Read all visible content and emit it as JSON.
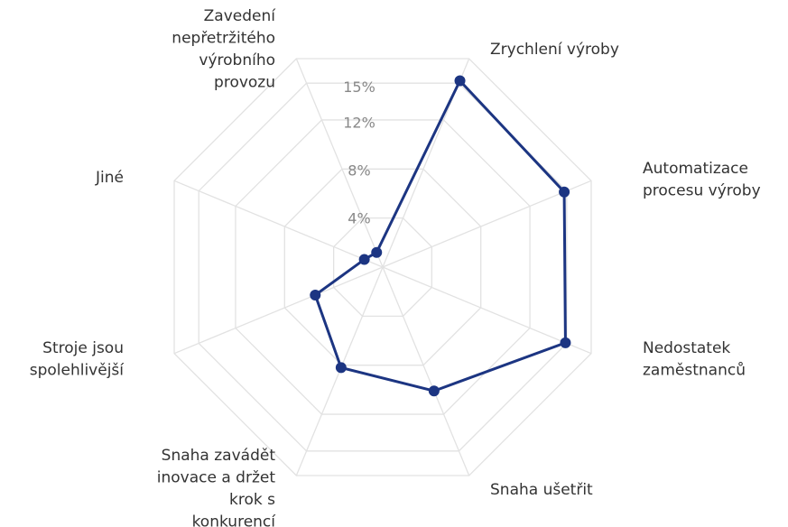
{
  "chart_data": {
    "type": "radar",
    "categories": [
      [
        "Zrychlení výroby"
      ],
      [
        "Automatizace",
        "procesu výroby"
      ],
      [
        "Nedostatek",
        "zaměstnanců"
      ],
      [
        "Snaha ušetřit"
      ],
      [
        "Snaha zavádět",
        "inovace a držet",
        "krok s",
        "konkurencí"
      ],
      [
        "Stroje jsou",
        "spolehlivější"
      ],
      [
        "Jiné"
      ],
      [
        "Zavedení",
        "nepřetržitého",
        "výrobního",
        "provozu"
      ]
    ],
    "values": [
      15.2,
      14.8,
      14.9,
      10.1,
      8.2,
      5.5,
      1.5,
      1.2
    ],
    "color": "#1c3582",
    "rlim": [
      0,
      17
    ],
    "rticks": [
      {
        "value": 4,
        "label": "4%"
      },
      {
        "value": 8,
        "label": "8%"
      },
      {
        "value": 12,
        "label": "12%"
      },
      {
        "value": 15,
        "label": "15%"
      }
    ],
    "grid": true
  }
}
